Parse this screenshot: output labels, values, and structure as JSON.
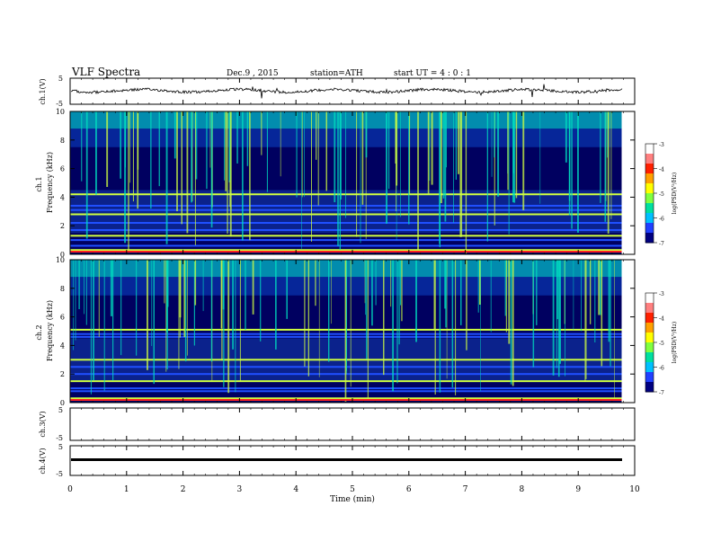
{
  "header": {
    "title": "VLF Spectra",
    "date": "Dec.9 , 2015",
    "station": "station=ATH",
    "start": "start UT = 4 : 0 : 1"
  },
  "panels": {
    "ch1_wave": {
      "ylabel": "ch.1(V)",
      "ticks": [
        "5",
        "-5"
      ]
    },
    "ch1_spec": {
      "ylabel": "ch.1",
      "ylabel2": "Frequency (kHz)",
      "ticks": [
        "10",
        "8",
        "6",
        "4",
        "2",
        "0"
      ]
    },
    "ch2_spec": {
      "ylabel": "ch.2",
      "ylabel2": "Frequency (kHz)",
      "ticks": [
        "10",
        "8",
        "6",
        "4",
        "2",
        "0"
      ]
    },
    "ch3_wave": {
      "ylabel": "ch.3(V)",
      "ticks": [
        "5",
        "-5"
      ]
    },
    "ch4_wave": {
      "ylabel": "ch.4(V)",
      "ticks": [
        "5",
        "-5"
      ]
    }
  },
  "colorbar": {
    "label": "log(PSD(V²/Hz)",
    "ticks": [
      "-3",
      "-4",
      "-5",
      "-6",
      "-7"
    ]
  },
  "xaxis": {
    "label": "Time (min)",
    "ticks": [
      "0",
      "1",
      "2",
      "3",
      "4",
      "5",
      "6",
      "7",
      "8",
      "9",
      "10"
    ]
  },
  "colors": {
    "low": "#000060",
    "mid_low": "#2050ff",
    "mid": "#00e0c0",
    "high": "#d0ff40",
    "peak": "#ff2020"
  },
  "chart_data": {
    "type": "heatmap",
    "x_range_min": [
      0,
      9.8
    ],
    "freq_range_khz": [
      0,
      10
    ],
    "zrange_logpsd": [
      -7,
      -3
    ],
    "ch1_band_khz": [
      0.3,
      0.6,
      1.0,
      1.3,
      1.7,
      2.2,
      2.8,
      3.1,
      3.4,
      4.2
    ],
    "ch2_band_khz": [
      0.3,
      0.8,
      1.0,
      1.5,
      2.0,
      2.5,
      3.0,
      4.6,
      4.8,
      5.1
    ],
    "ch1_voltage_range": [
      -5,
      5
    ],
    "ch4_level_v": -0.3
  }
}
